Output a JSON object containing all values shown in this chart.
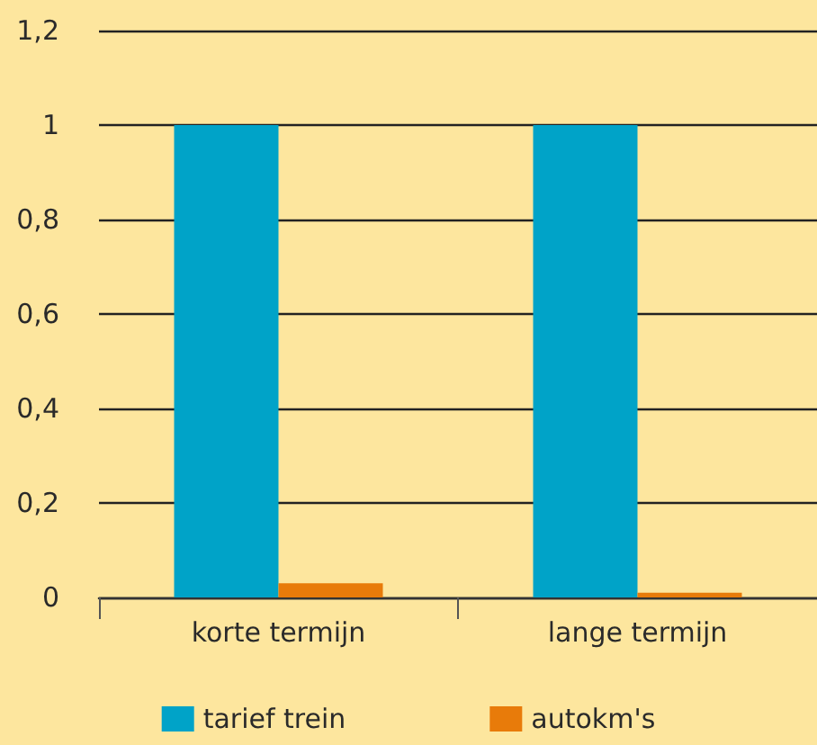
{
  "chart_data": {
    "type": "bar",
    "categories": [
      "korte termijn",
      "lange termijn"
    ],
    "series": [
      {
        "name": "tarief trein",
        "color": "#00a3c8",
        "values": [
          1,
          1
        ]
      },
      {
        "name": "autokm's",
        "color": "#e87b0a",
        "values": [
          0.03,
          0.01
        ]
      }
    ],
    "ylim": [
      0,
      1.2
    ],
    "yticks": [
      {
        "value": 0,
        "label": "0"
      },
      {
        "value": 0.2,
        "label": "0,2"
      },
      {
        "value": 0.4,
        "label": "0,4"
      },
      {
        "value": 0.6,
        "label": "0,6"
      },
      {
        "value": 0.8,
        "label": "0,8"
      },
      {
        "value": 1,
        "label": "1"
      },
      {
        "value": 1.2,
        "label": "1,2"
      }
    ],
    "grid": "y",
    "legend": "bottom"
  }
}
